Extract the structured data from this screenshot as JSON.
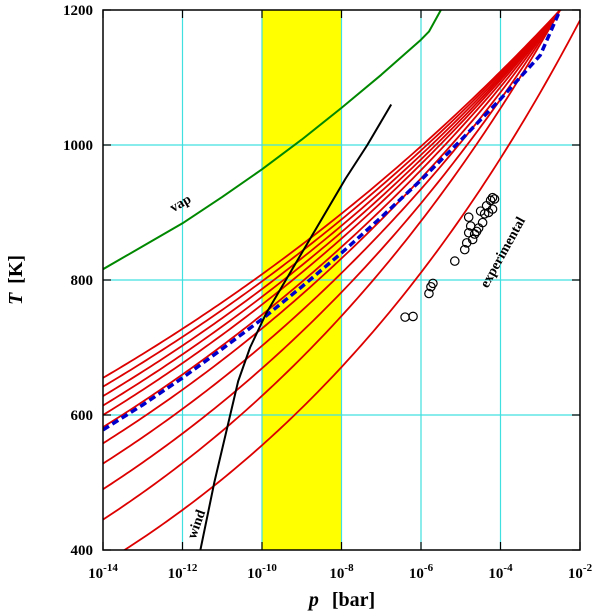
{
  "chart_data": {
    "type": "line",
    "title": "",
    "xlabel_symbol": "p",
    "xlabel_unit": "[bar]",
    "ylabel_symbol": "T",
    "ylabel_unit": "[K]",
    "x_scale": "log",
    "xlim_log10": [
      -14,
      -2
    ],
    "ylim": [
      400,
      1200
    ],
    "x_ticks": [
      {
        "exp": -14,
        "base": "10",
        "sup": "-14"
      },
      {
        "exp": -12,
        "base": "10",
        "sup": "-12"
      },
      {
        "exp": -10,
        "base": "10",
        "sup": "-10"
      },
      {
        "exp": -8,
        "base": "10",
        "sup": "-8"
      },
      {
        "exp": -6,
        "base": "10",
        "sup": "-6"
      },
      {
        "exp": -4,
        "base": "10",
        "sup": "-4"
      },
      {
        "exp": -2,
        "base": "10",
        "sup": "-2"
      }
    ],
    "y_ticks": [
      400,
      600,
      800,
      1000,
      1200
    ],
    "y_tick_labels": [
      "400",
      "600",
      "800",
      "1000",
      "1200"
    ],
    "grid": true,
    "colors": {
      "grid": "#40e0e0",
      "band": "#ffff00",
      "family": "#dd0000",
      "highlight": "#0000cc",
      "vap": "#008800",
      "wind": "#000000",
      "points": "#000000"
    },
    "band": {
      "name": "highlight-band",
      "x_log10": [
        -10,
        -8
      ]
    },
    "family_curves": {
      "name": "isotherm",
      "curvature": 0.08,
      "anchors_at_log10p": [
        -14,
        -2.5
      ],
      "curves": [
        {
          "T_low": 655,
          "T_high": 1200
        },
        {
          "T_low": 642,
          "T_high": 1200
        },
        {
          "T_low": 628,
          "T_high": 1200
        },
        {
          "T_low": 614,
          "T_high": 1200
        },
        {
          "T_low": 600,
          "T_high": 1200
        },
        {
          "T_low": 582,
          "T_high": 1200
        },
        {
          "T_low": 558,
          "T_high": 1200
        },
        {
          "T_low": 528,
          "T_high": 1200
        },
        {
          "T_low": 490,
          "T_high": 1200
        },
        {
          "T_low": 445,
          "T_high": 1200
        },
        {
          "T_low": 380,
          "T_high": 1130
        }
      ]
    },
    "series": [
      {
        "name": "dashed-fit",
        "style": "dashed",
        "points": [
          [
            -14,
            578
          ],
          [
            -13,
            615
          ],
          [
            -12,
            655
          ],
          [
            -11,
            698
          ],
          [
            -10,
            742
          ],
          [
            -9,
            790
          ],
          [
            -8,
            840
          ],
          [
            -7,
            893
          ],
          [
            -6,
            948
          ],
          [
            -5,
            1007
          ],
          [
            -4,
            1068
          ],
          [
            -3,
            1133
          ],
          [
            -2.5,
            1200
          ]
        ]
      },
      {
        "name": "vap",
        "label": "vap",
        "points": [
          [
            -14,
            816
          ],
          [
            -13,
            850
          ],
          [
            -12,
            884
          ],
          [
            -11,
            923
          ],
          [
            -10,
            964
          ],
          [
            -9,
            1008
          ],
          [
            -8,
            1055
          ],
          [
            -7,
            1104
          ],
          [
            -6,
            1156
          ],
          [
            -5.8,
            1168
          ],
          [
            -5.5,
            1200
          ]
        ]
      },
      {
        "name": "wind",
        "label": "wind",
        "points": [
          [
            -11.55,
            400
          ],
          [
            -11.2,
            500
          ],
          [
            -10.8,
            600
          ],
          [
            -10.6,
            650
          ],
          [
            -10.3,
            700
          ],
          [
            -9.9,
            750
          ],
          [
            -9.4,
            800
          ],
          [
            -8.9,
            850
          ],
          [
            -8.4,
            900
          ],
          [
            -7.9,
            950
          ],
          [
            -7.35,
            1000
          ],
          [
            -6.75,
            1060
          ]
        ]
      }
    ],
    "experimental": {
      "label": "experimental",
      "points": [
        [
          -6.4,
          745
        ],
        [
          -6.2,
          746
        ],
        [
          -5.8,
          780
        ],
        [
          -5.75,
          790
        ],
        [
          -5.7,
          795
        ],
        [
          -5.15,
          828
        ],
        [
          -4.9,
          845
        ],
        [
          -4.85,
          855
        ],
        [
          -4.8,
          870
        ],
        [
          -4.75,
          880
        ],
        [
          -4.8,
          893
        ],
        [
          -4.7,
          860
        ],
        [
          -4.6,
          872
        ],
        [
          -4.45,
          885
        ],
        [
          -4.4,
          898
        ],
        [
          -4.35,
          910
        ],
        [
          -4.3,
          900
        ],
        [
          -4.25,
          918
        ],
        [
          -4.2,
          905
        ],
        [
          -4.2,
          922
        ],
        [
          -4.15,
          920
        ],
        [
          -4.55,
          877
        ],
        [
          -4.65,
          868
        ],
        [
          -4.5,
          902
        ]
      ]
    },
    "annotations": [
      {
        "name": "vap-label",
        "text": "vap",
        "x_log10": -12.0,
        "T": 908,
        "rotate": -30
      },
      {
        "name": "wind-label",
        "text": "wind",
        "x_log10": -11.55,
        "T": 436,
        "rotate": -70
      },
      {
        "name": "experimental-label",
        "text": "experimental",
        "x_log10": -3.85,
        "T": 838,
        "rotate": -61
      }
    ]
  }
}
